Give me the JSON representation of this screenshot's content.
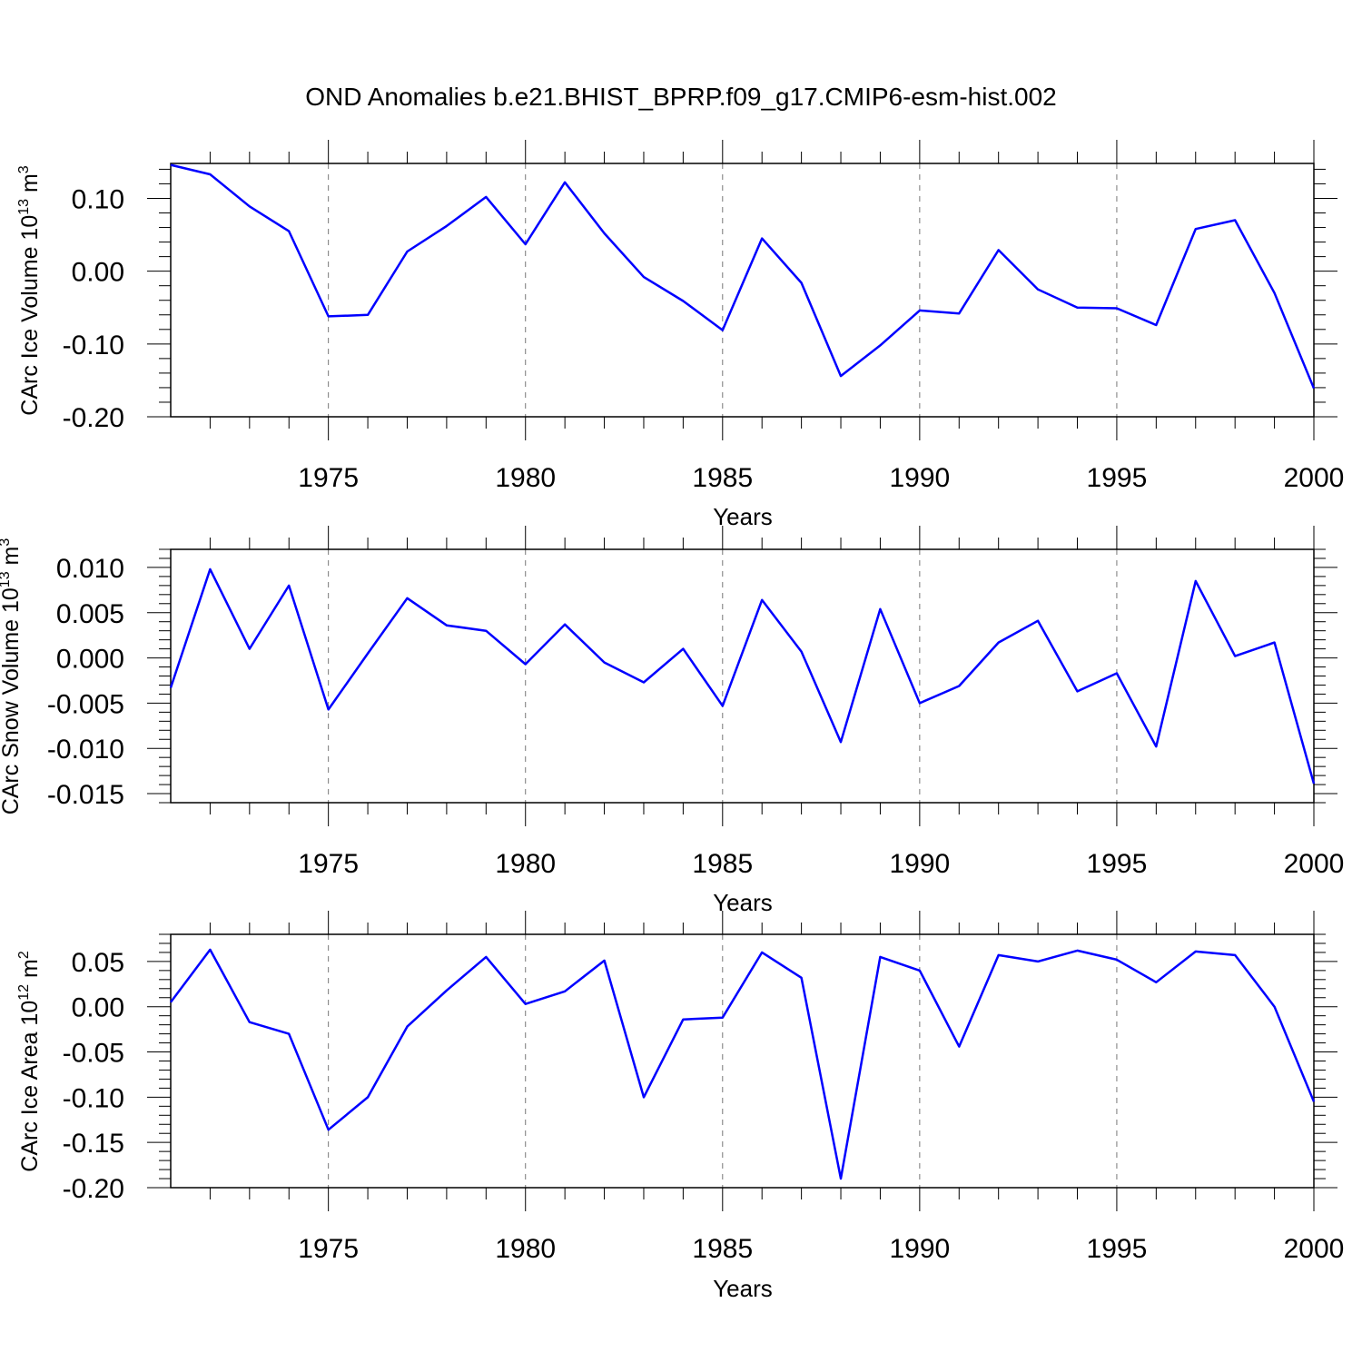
{
  "title": "OND Anomalies b.e21.BHIST_BPRP.f09_g17.CMIP6-esm-hist.002",
  "line_color": "#0000ff",
  "chart_data": [
    {
      "type": "line",
      "ylabel_prefix": "CArc Ice Volume 10",
      "ylabel_exp": "13",
      "ylabel_unit": " m",
      "ylabel_unit_exp": "3",
      "xlabel": "Years",
      "xlim": [
        1971,
        2000
      ],
      "ylim": [
        -0.2,
        0.148
      ],
      "x_ticks": [
        "1975",
        "1980",
        "1985",
        "1990",
        "1995",
        "2000"
      ],
      "y_ticks": [
        "0.10",
        "0.00",
        "-0.10",
        "-0.20"
      ],
      "x": [
        1971,
        1972,
        1973,
        1974,
        1975,
        1976,
        1977,
        1978,
        1979,
        1980,
        1981,
        1982,
        1983,
        1984,
        1985,
        1986,
        1987,
        1988,
        1989,
        1990,
        1991,
        1992,
        1993,
        1994,
        1995,
        1996,
        1997,
        1998,
        1999,
        2000
      ],
      "values": [
        0.146,
        0.133,
        0.089,
        0.055,
        -0.062,
        -0.06,
        0.027,
        0.062,
        0.102,
        0.037,
        0.122,
        0.052,
        -0.008,
        -0.041,
        -0.081,
        0.045,
        -0.016,
        -0.144,
        -0.102,
        -0.054,
        -0.058,
        0.029,
        -0.025,
        -0.05,
        -0.051,
        -0.074,
        0.058,
        0.07,
        -0.03,
        -0.161
      ]
    },
    {
      "type": "line",
      "ylabel_prefix": "CArc Snow Volume 10",
      "ylabel_exp": "13",
      "ylabel_unit": " m",
      "ylabel_unit_exp": "3",
      "xlabel": "Years",
      "xlim": [
        1971,
        2000
      ],
      "ylim": [
        -0.016,
        0.012
      ],
      "x_ticks": [
        "1975",
        "1980",
        "1985",
        "1990",
        "1995",
        "2000"
      ],
      "y_ticks": [
        "0.010",
        "0.005",
        "0.000",
        "-0.005",
        "-0.010",
        "-0.015"
      ],
      "x": [
        1971,
        1972,
        1973,
        1974,
        1975,
        1976,
        1977,
        1978,
        1979,
        1980,
        1981,
        1982,
        1983,
        1984,
        1985,
        1986,
        1987,
        1988,
        1989,
        1990,
        1991,
        1992,
        1993,
        1994,
        1995,
        1996,
        1997,
        1998,
        1999,
        2000
      ],
      "values": [
        -0.0033,
        0.0098,
        0.001,
        0.008,
        -0.0057,
        0.0005,
        0.0066,
        0.0036,
        0.003,
        -0.0007,
        0.0037,
        -0.0005,
        -0.0027,
        0.001,
        -0.0053,
        0.0064,
        0.0007,
        -0.0093,
        0.0054,
        -0.005,
        -0.0031,
        0.0017,
        0.0041,
        -0.0037,
        -0.0017,
        -0.0098,
        0.0085,
        0.0002,
        0.0017,
        -0.0139
      ]
    },
    {
      "type": "line",
      "ylabel_prefix": "CArc Ice Area 10",
      "ylabel_exp": "12",
      "ylabel_unit": " m",
      "ylabel_unit_exp": "2",
      "xlabel": "Years",
      "xlim": [
        1971,
        2000
      ],
      "ylim": [
        -0.2,
        0.08
      ],
      "x_ticks": [
        "1975",
        "1980",
        "1985",
        "1990",
        "1995",
        "2000"
      ],
      "y_ticks": [
        "0.05",
        "0.00",
        "-0.05",
        "-0.10",
        "-0.15",
        "-0.20"
      ],
      "x": [
        1971,
        1972,
        1973,
        1974,
        1975,
        1976,
        1977,
        1978,
        1979,
        1980,
        1981,
        1982,
        1983,
        1984,
        1985,
        1986,
        1987,
        1988,
        1989,
        1990,
        1991,
        1992,
        1993,
        1994,
        1995,
        1996,
        1997,
        1998,
        1999,
        2000
      ],
      "values": [
        0.005,
        0.063,
        -0.017,
        -0.03,
        -0.136,
        -0.1,
        -0.022,
        0.018,
        0.055,
        0.003,
        0.017,
        0.051,
        -0.1,
        -0.014,
        -0.012,
        0.06,
        0.032,
        -0.19,
        0.055,
        0.04,
        -0.044,
        0.057,
        0.05,
        0.062,
        0.052,
        0.027,
        0.061,
        0.057,
        0.0,
        -0.105
      ]
    }
  ]
}
